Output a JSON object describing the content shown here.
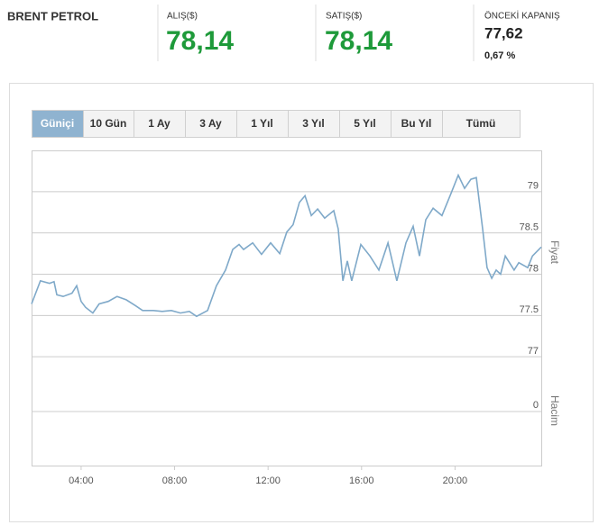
{
  "header": {
    "title": "BRENT PETROL",
    "buy": {
      "label": "ALIŞ($)",
      "value": "78,14"
    },
    "sell": {
      "label": "SATIŞ($)",
      "value": "78,14"
    },
    "previous": {
      "label": "ÖNCEKİ KAPANIŞ",
      "value": "77,62",
      "change": "0,67 %"
    }
  },
  "range_buttons": [
    "Güniçi",
    "10 Gün",
    "1 Ay",
    "3 Ay",
    "1 Yıl",
    "3 Yıl",
    "5 Yıl",
    "Bu Yıl",
    "Tümü"
  ],
  "chart_data": {
    "type": "line",
    "ylabel": "Fiyat",
    "volume_label": "Hacim",
    "x": [
      1.88,
      2.26,
      2.65,
      2.84,
      2.96,
      3.23,
      3.61,
      3.81,
      4.0,
      4.19,
      4.5,
      4.77,
      5.16,
      5.54,
      5.93,
      6.32,
      6.63,
      7.09,
      7.47,
      7.86,
      8.25,
      8.63,
      8.94,
      9.41,
      9.79,
      10.18,
      10.49,
      10.76,
      10.95,
      11.34,
      11.72,
      12.11,
      12.5,
      12.8,
      13.07,
      13.34,
      13.58,
      13.85,
      14.12,
      14.42,
      14.81,
      15.0,
      15.2,
      15.39,
      15.58,
      15.97,
      16.36,
      16.74,
      17.13,
      17.51,
      17.9,
      18.21,
      18.48,
      18.75,
      19.06,
      19.44,
      19.83,
      20.14,
      20.41,
      20.68,
      20.91,
      21.18,
      21.37,
      21.57,
      21.76,
      21.95,
      22.15,
      22.53,
      22.73,
      23.11,
      23.31,
      23.69
    ],
    "series": [
      {
        "name": "Fiyat",
        "color": "#7fa9c9",
        "values": [
          77.64,
          77.92,
          77.89,
          77.91,
          77.75,
          77.73,
          77.77,
          77.86,
          77.67,
          77.6,
          77.53,
          77.64,
          77.67,
          77.73,
          77.69,
          77.62,
          77.56,
          77.56,
          77.55,
          77.56,
          77.53,
          77.55,
          77.49,
          77.56,
          77.86,
          78.05,
          78.3,
          78.36,
          78.3,
          78.38,
          78.24,
          78.38,
          78.25,
          78.51,
          78.6,
          78.87,
          78.95,
          78.71,
          78.79,
          78.68,
          78.77,
          78.55,
          77.92,
          78.16,
          77.92,
          78.36,
          78.22,
          78.05,
          78.38,
          77.92,
          78.38,
          78.58,
          78.22,
          78.66,
          78.8,
          78.71,
          78.98,
          79.2,
          79.04,
          79.15,
          79.17,
          78.55,
          78.08,
          77.95,
          78.05,
          78.0,
          78.22,
          78.05,
          78.14,
          78.08,
          78.22,
          78.33
        ]
      }
    ],
    "xlim": [
      1.88,
      23.69
    ],
    "xticks": [
      {
        "value": 4,
        "label": "04:00"
      },
      {
        "value": 8,
        "label": "08:00"
      },
      {
        "value": 12,
        "label": "12:00"
      },
      {
        "value": 16,
        "label": "16:00"
      },
      {
        "value": 20,
        "label": "20:00"
      }
    ],
    "ylim": [
      76.5,
      79.5
    ],
    "yticks": [
      77,
      77.5,
      78,
      78.5,
      79
    ],
    "volume_ticks": [
      0
    ],
    "grid": true
  }
}
